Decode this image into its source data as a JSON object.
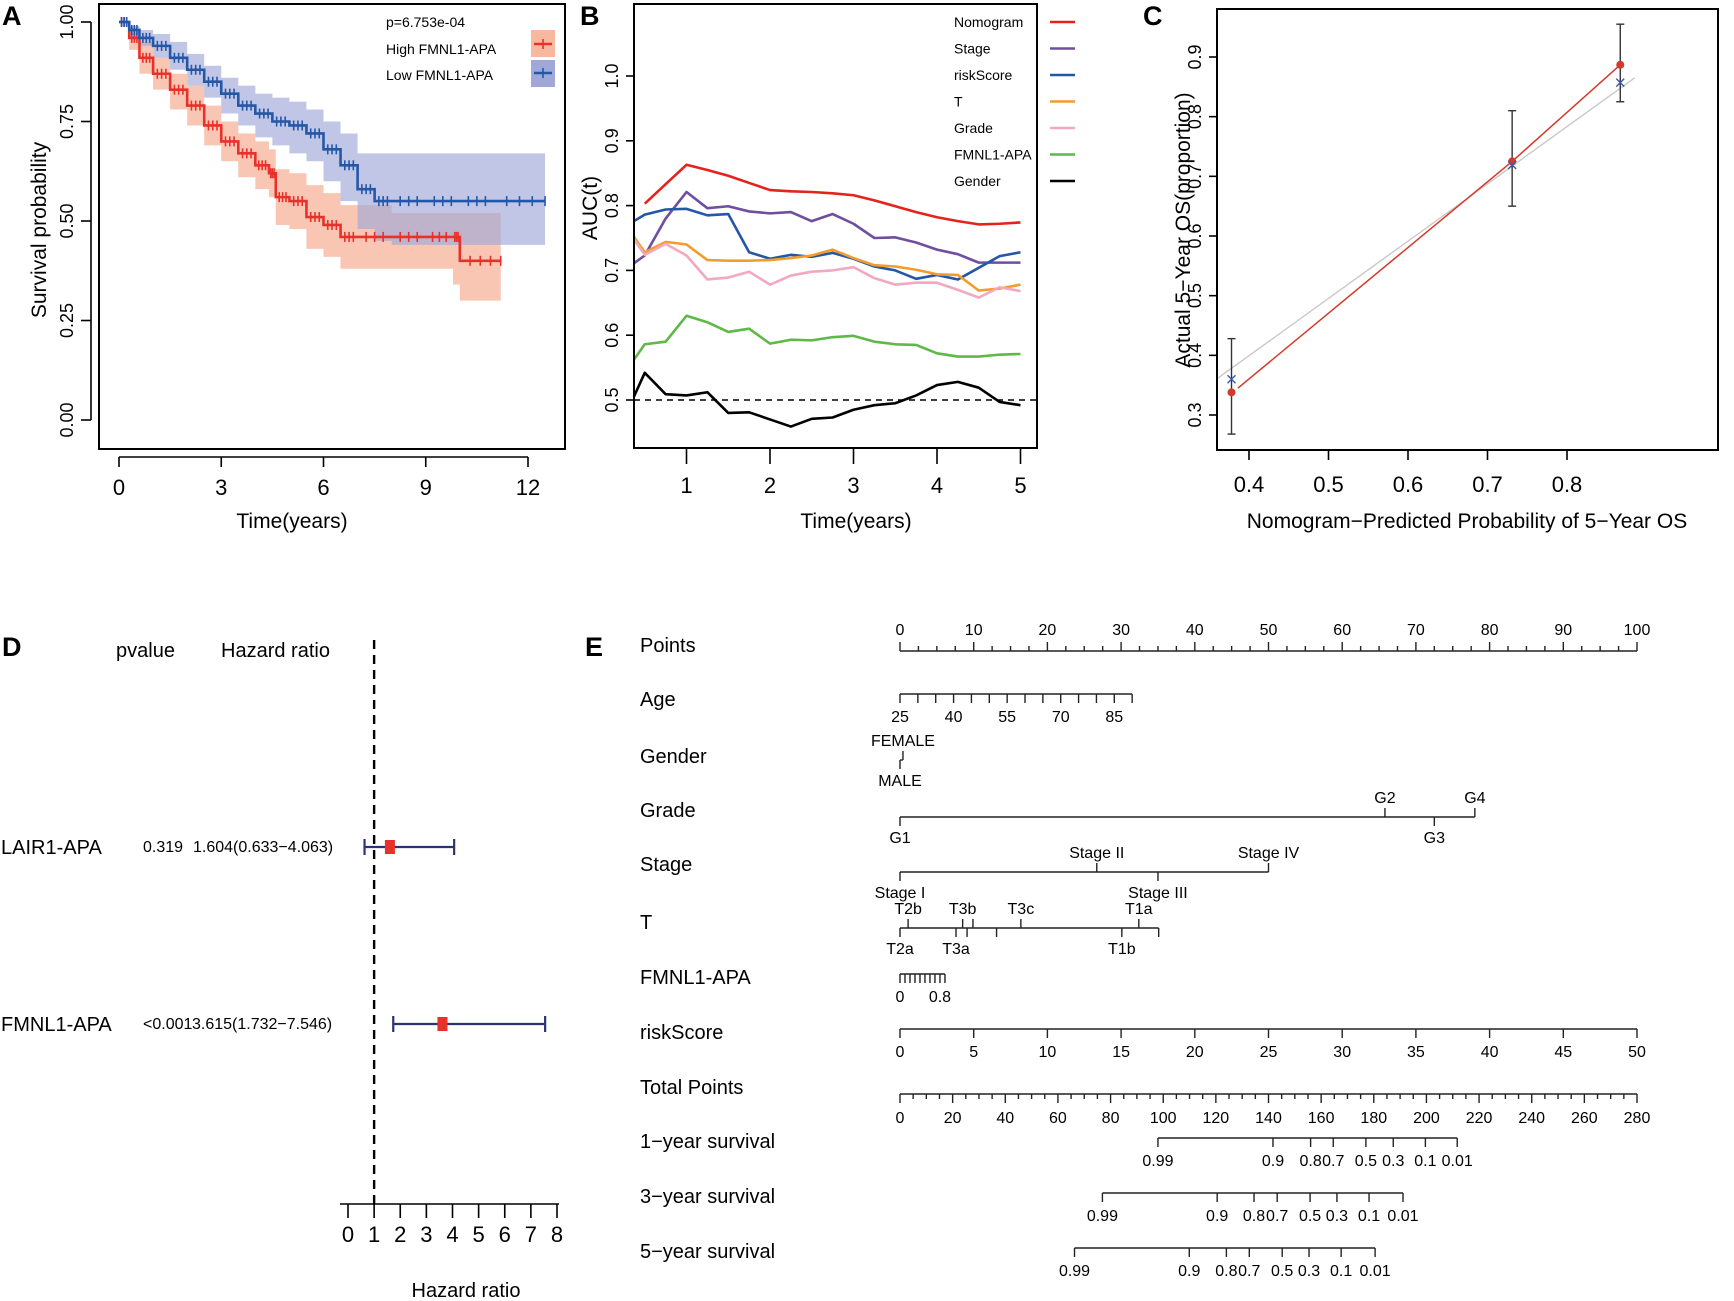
{
  "figure": {
    "panels": [
      "A",
      "B",
      "C",
      "D",
      "E"
    ]
  },
  "chart_data": [
    {
      "id": "A",
      "type": "line",
      "subtype": "kaplan-meier",
      "title": "",
      "xlabel": "Time(years)",
      "ylabel": "Survival probability",
      "xlim": [
        -0.3,
        13.4
      ],
      "ylim": [
        -0.03,
        1.03
      ],
      "xticks": [
        0,
        3,
        6,
        9,
        12
      ],
      "yticks": [
        "0.00",
        "0.25",
        "0.50",
        "0.75",
        "1.00"
      ],
      "yticks_values": [
        0,
        0.25,
        0.5,
        0.75,
        1.0
      ],
      "annotation": "p=6.753e-04",
      "legend_position": "top-right",
      "series": [
        {
          "name": "High FMNL1-APA",
          "color": "#e8312a",
          "band_color": "#f8b8a0",
          "x": [
            0,
            0.3,
            0.6,
            1.0,
            1.5,
            2.0,
            2.5,
            3.0,
            3.5,
            4.0,
            4.4,
            4.6,
            5.0,
            5.5,
            6.0,
            6.5,
            7.0,
            8.0,
            9.0,
            9.8,
            10.0,
            11.2
          ],
          "y": [
            1.0,
            0.96,
            0.91,
            0.87,
            0.83,
            0.79,
            0.74,
            0.7,
            0.67,
            0.64,
            0.62,
            0.56,
            0.55,
            0.51,
            0.49,
            0.46,
            0.46,
            0.46,
            0.46,
            0.46,
            0.4,
            0.4
          ],
          "lower": [
            1.0,
            0.93,
            0.87,
            0.83,
            0.78,
            0.74,
            0.69,
            0.65,
            0.61,
            0.58,
            0.56,
            0.49,
            0.48,
            0.43,
            0.41,
            0.38,
            0.38,
            0.38,
            0.38,
            0.34,
            0.3,
            0.3
          ],
          "upper": [
            1.0,
            0.98,
            0.95,
            0.91,
            0.87,
            0.84,
            0.79,
            0.75,
            0.72,
            0.7,
            0.68,
            0.63,
            0.62,
            0.59,
            0.57,
            0.54,
            0.54,
            0.52,
            0.52,
            0.52,
            0.52,
            0.52
          ]
        },
        {
          "name": "Low FMNL1-APA",
          "color": "#2557a7",
          "band_color": "#9fa8d8",
          "x": [
            0,
            0.3,
            0.6,
            1.0,
            1.5,
            2.0,
            2.5,
            3.0,
            3.5,
            4.0,
            4.5,
            5.0,
            5.5,
            6.0,
            6.5,
            7.0,
            7.5,
            8.0,
            9.0,
            10.0,
            11.0,
            12.5
          ],
          "y": [
            1.0,
            0.98,
            0.96,
            0.94,
            0.91,
            0.88,
            0.85,
            0.82,
            0.79,
            0.77,
            0.75,
            0.74,
            0.72,
            0.68,
            0.64,
            0.58,
            0.55,
            0.55,
            0.55,
            0.55,
            0.55,
            0.55
          ],
          "lower": [
            1.0,
            0.96,
            0.94,
            0.91,
            0.88,
            0.84,
            0.81,
            0.77,
            0.74,
            0.71,
            0.69,
            0.67,
            0.65,
            0.6,
            0.55,
            0.48,
            0.45,
            0.44,
            0.44,
            0.44,
            0.44,
            0.44
          ],
          "upper": [
            1.0,
            0.99,
            0.98,
            0.97,
            0.95,
            0.92,
            0.89,
            0.86,
            0.84,
            0.82,
            0.81,
            0.8,
            0.78,
            0.75,
            0.72,
            0.67,
            0.67,
            0.67,
            0.67,
            0.67,
            0.67,
            0.67
          ]
        }
      ]
    },
    {
      "id": "B",
      "type": "line",
      "subtype": "time-dependent-auc",
      "title": "",
      "xlabel": "Time(years)",
      "ylabel": "AUC(t)",
      "xlim": [
        0.37,
        5.2
      ],
      "ylim": [
        0.42,
        1.09
      ],
      "xticks": [
        1,
        2,
        3,
        4,
        5
      ],
      "yticks": [
        "0.5",
        "0.6",
        "0.7",
        "0.8",
        "0.9",
        "1.0"
      ],
      "yticks_values": [
        0.5,
        0.6,
        0.7,
        0.8,
        0.9,
        1.0
      ],
      "reference_line": 0.5,
      "legend_position": "top-right",
      "x": [
        0.37,
        0.5,
        0.75,
        1.0,
        1.25,
        1.5,
        1.75,
        2.0,
        2.25,
        2.5,
        2.75,
        3.0,
        3.25,
        3.5,
        3.75,
        4.0,
        4.25,
        4.5,
        4.75,
        5.0
      ],
      "series": [
        {
          "name": "Nomogram",
          "color": "#e3231c",
          "values": [
            null,
            0.803,
            0.833,
            0.863,
            0.855,
            0.846,
            0.835,
            0.824,
            0.822,
            0.821,
            0.819,
            0.816,
            0.808,
            0.799,
            0.79,
            0.782,
            0.776,
            0.771,
            0.772,
            0.774
          ]
        },
        {
          "name": "Stage",
          "color": "#6f4ea0",
          "values": [
            0.711,
            0.723,
            0.78,
            0.821,
            0.796,
            0.799,
            0.791,
            0.788,
            0.79,
            0.776,
            0.787,
            0.772,
            0.75,
            0.751,
            0.743,
            0.732,
            0.725,
            0.712,
            0.712,
            0.712
          ]
        },
        {
          "name": "riskScore",
          "color": "#2457a5",
          "values": [
            0.776,
            0.786,
            0.794,
            0.795,
            0.785,
            0.787,
            0.728,
            0.718,
            0.724,
            0.721,
            0.727,
            0.718,
            0.706,
            0.7,
            0.687,
            0.693,
            0.686,
            0.704,
            0.722,
            0.728
          ]
        },
        {
          "name": "T",
          "color": "#f39c2e",
          "values": [
            0.752,
            0.728,
            0.744,
            0.74,
            0.716,
            0.715,
            0.715,
            0.716,
            0.719,
            0.723,
            0.732,
            0.719,
            0.708,
            0.706,
            0.701,
            0.694,
            0.693,
            0.669,
            0.672,
            0.678
          ]
        },
        {
          "name": "Grade",
          "color": "#f2a9c0",
          "values": [
            0.748,
            0.724,
            0.741,
            0.723,
            0.686,
            0.689,
            0.698,
            0.678,
            0.692,
            0.698,
            0.7,
            0.705,
            0.688,
            0.678,
            0.681,
            0.681,
            0.67,
            0.658,
            0.674,
            0.668
          ]
        },
        {
          "name": "FMNL1-APA",
          "color": "#5fb847",
          "values": [
            0.562,
            0.586,
            0.59,
            0.63,
            0.62,
            0.605,
            0.61,
            0.587,
            0.593,
            0.592,
            0.597,
            0.599,
            0.59,
            0.586,
            0.585,
            0.572,
            0.567,
            0.567,
            0.57,
            0.571
          ]
        },
        {
          "name": "Gender",
          "color": "#000000",
          "values": [
            0.505,
            0.542,
            0.509,
            0.507,
            0.512,
            0.48,
            0.481,
            0.47,
            0.459,
            0.471,
            0.473,
            0.485,
            0.492,
            0.495,
            0.507,
            0.523,
            0.528,
            0.519,
            0.497,
            0.492
          ]
        }
      ]
    },
    {
      "id": "C",
      "type": "scatter",
      "subtype": "calibration",
      "title": "",
      "xlabel": "Nomogram−Predicted Probability of 5−Year OS",
      "ylabel": "Actual 5−Year OS(proportion)",
      "xlim": [
        0.36,
        0.885
      ],
      "ylim": [
        0.24,
        0.985
      ],
      "xticks": [
        "0.4",
        "0.5",
        "0.6",
        "0.7",
        "0.8"
      ],
      "xticks_values": [
        0.4,
        0.5,
        0.6,
        0.7,
        0.8
      ],
      "yticks": [
        "0.3",
        "0.4",
        "0.5",
        "0.6",
        "0.7",
        "0.8",
        "0.9"
      ],
      "yticks_values": [
        0.3,
        0.4,
        0.5,
        0.6,
        0.7,
        0.8,
        0.9
      ],
      "points": [
        {
          "x": 0.378,
          "observed": 0.338,
          "corrected": 0.36,
          "ci_low": 0.268,
          "ci_high": 0.428
        },
        {
          "x": 0.731,
          "observed": 0.725,
          "corrected": 0.719,
          "ci_low": 0.65,
          "ci_high": 0.81
        },
        {
          "x": 0.867,
          "observed": 0.887,
          "corrected": 0.857,
          "ci_low": 0.825,
          "ci_high": 0.955
        }
      ],
      "ideal_line_color": "#c8c8c8",
      "observed_color": "#d33a2c",
      "corrected_color": "#3a5aa8"
    },
    {
      "id": "D",
      "type": "forest",
      "title": "",
      "xlabel": "Hazard ratio",
      "columns": [
        "pvalue",
        "Hazard ratio"
      ],
      "xlim": [
        0,
        8
      ],
      "xticks": [
        0,
        1,
        2,
        3,
        4,
        5,
        6,
        7,
        8
      ],
      "reference_line": 1,
      "rows": [
        {
          "label": "LAIR1-APA",
          "pvalue": "0.319",
          "hr_text": "1.604(0.633−4.063)",
          "hr": 1.604,
          "low": 0.633,
          "high": 4.063
        },
        {
          "label": "FMNL1-APA",
          "pvalue": "<0.001",
          "hr_text": "3.615(1.732−7.546)",
          "hr": 3.615,
          "low": 1.732,
          "high": 7.546
        }
      ],
      "box_color": "#e8312a",
      "line_color": "#2b3470"
    },
    {
      "id": "E",
      "type": "nomogram",
      "title": "",
      "rows": [
        {
          "label": "Points",
          "kind": "points-axis",
          "min": 0,
          "max": 100,
          "labels": [
            0,
            10,
            20,
            30,
            40,
            50,
            60,
            70,
            80,
            90,
            100
          ],
          "minor_step": 2.5
        },
        {
          "label": "Age",
          "kind": "continuous",
          "points_start": 0,
          "points_end": 31.5,
          "ticks": [
            25,
            30,
            35,
            40,
            45,
            50,
            55,
            60,
            65,
            70,
            75,
            80,
            85,
            90
          ],
          "labels": [
            "25",
            "40",
            "55",
            "70",
            "85"
          ],
          "label_values": [
            25,
            40,
            55,
            70,
            85
          ],
          "min": 25,
          "max": 90,
          "label_side": "below"
        },
        {
          "label": "Gender",
          "kind": "categorical",
          "levels": [
            {
              "name": "FEMALE",
              "points": 0.4,
              "side": "above"
            },
            {
              "name": "MALE",
              "points": 0,
              "side": "below"
            }
          ]
        },
        {
          "label": "Grade",
          "kind": "categorical",
          "levels": [
            {
              "name": "G1",
              "points": 0,
              "side": "below"
            },
            {
              "name": "G2",
              "points": 65.8,
              "side": "above"
            },
            {
              "name": "G3",
              "points": 72.5,
              "side": "below"
            },
            {
              "name": "G4",
              "points": 78.0,
              "side": "above"
            }
          ]
        },
        {
          "label": "Stage",
          "kind": "categorical",
          "levels": [
            {
              "name": "Stage I",
              "points": 0,
              "side": "below"
            },
            {
              "name": "Stage II",
              "points": 26.7,
              "side": "above"
            },
            {
              "name": "Stage III",
              "points": 35.0,
              "side": "below"
            },
            {
              "name": "Stage IV",
              "points": 50.0,
              "side": "above"
            }
          ]
        },
        {
          "label": "T",
          "kind": "categorical",
          "levels": [
            {
              "name": "T2a",
              "points": 0,
              "side": "below"
            },
            {
              "name": "T2b",
              "points": 1.1,
              "side": "above"
            },
            {
              "name": "T3a",
              "points": 7.6,
              "side": "below"
            },
            {
              "name": "T3b",
              "points": 8.5,
              "side": "above"
            },
            {
              "name": "",
              "points": 9.1,
              "side": "below"
            },
            {
              "name": "",
              "points": 9.9,
              "side": "above"
            },
            {
              "name": "",
              "points": 13.1,
              "side": "below"
            },
            {
              "name": "T3c",
              "points": 16.4,
              "side": "above"
            },
            {
              "name": "T1b",
              "points": 30.1,
              "side": "below"
            },
            {
              "name": "T1a",
              "points": 32.4,
              "side": "above"
            },
            {
              "name": "",
              "points": 35.1,
              "side": "below"
            }
          ]
        },
        {
          "label": "FMNL1-APA",
          "kind": "continuous",
          "points_start": 0,
          "points_end": 6.1,
          "ticks": [
            0,
            0.1,
            0.2,
            0.3,
            0.4,
            0.5,
            0.6,
            0.7,
            0.8,
            0.9
          ],
          "labels": [
            "0",
            "0.8"
          ],
          "label_values": [
            0,
            0.8
          ],
          "min": 0,
          "max": 0.9,
          "label_side": "below"
        },
        {
          "label": "riskScore",
          "kind": "continuous",
          "points_start": 0,
          "points_end": 100,
          "ticks": [
            0,
            5,
            10,
            15,
            20,
            25,
            30,
            35,
            40,
            45,
            50
          ],
          "labels": [
            "0",
            "5",
            "10",
            "15",
            "20",
            "25",
            "30",
            "35",
            "40",
            "45",
            "50"
          ],
          "label_values": [
            0,
            5,
            10,
            15,
            20,
            25,
            30,
            35,
            40,
            45,
            50
          ],
          "min": 0,
          "max": 50,
          "label_side": "below"
        },
        {
          "label": "Total Points",
          "kind": "total-axis",
          "min": 0,
          "max": 280,
          "labels": [
            0,
            20,
            40,
            60,
            80,
            100,
            120,
            140,
            160,
            180,
            200,
            220,
            240,
            260,
            280
          ],
          "minor_step": 5
        },
        {
          "label": "1−year survival",
          "kind": "survival",
          "ticks": [
            {
              "name": "0.99",
              "total": 98.0
            },
            {
              "name": "0.9",
              "total": 141.7
            },
            {
              "name": "0.8",
              "total": 156.0
            },
            {
              "name": "0.7",
              "total": 164.6
            },
            {
              "name": "0.5",
              "total": 177.0
            },
            {
              "name": "0.3",
              "total": 187.4
            },
            {
              "name": "0.1",
              "total": 199.6
            },
            {
              "name": "0.01",
              "total": 211.7
            }
          ]
        },
        {
          "label": "3−year survival",
          "kind": "survival",
          "ticks": [
            {
              "name": "0.99",
              "total": 76.9
            },
            {
              "name": "0.9",
              "total": 120.5
            },
            {
              "name": "0.8",
              "total": 134.5
            },
            {
              "name": "0.7",
              "total": 143.3
            },
            {
              "name": "0.5",
              "total": 155.8
            },
            {
              "name": "0.3",
              "total": 166.0
            },
            {
              "name": "0.1",
              "total": 178.2
            },
            {
              "name": "0.01",
              "total": 191.1
            }
          ]
        },
        {
          "label": "5−year survival",
          "kind": "survival",
          "ticks": [
            {
              "name": "0.99",
              "total": 66.3
            },
            {
              "name": "0.9",
              "total": 109.9
            },
            {
              "name": "0.8",
              "total": 124.0
            },
            {
              "name": "0.7",
              "total": 132.7
            },
            {
              "name": "0.5",
              "total": 145.2
            },
            {
              "name": "0.3",
              "total": 155.4
            },
            {
              "name": "0.1",
              "total": 167.6
            },
            {
              "name": "0.01",
              "total": 180.5
            }
          ]
        }
      ]
    }
  ]
}
